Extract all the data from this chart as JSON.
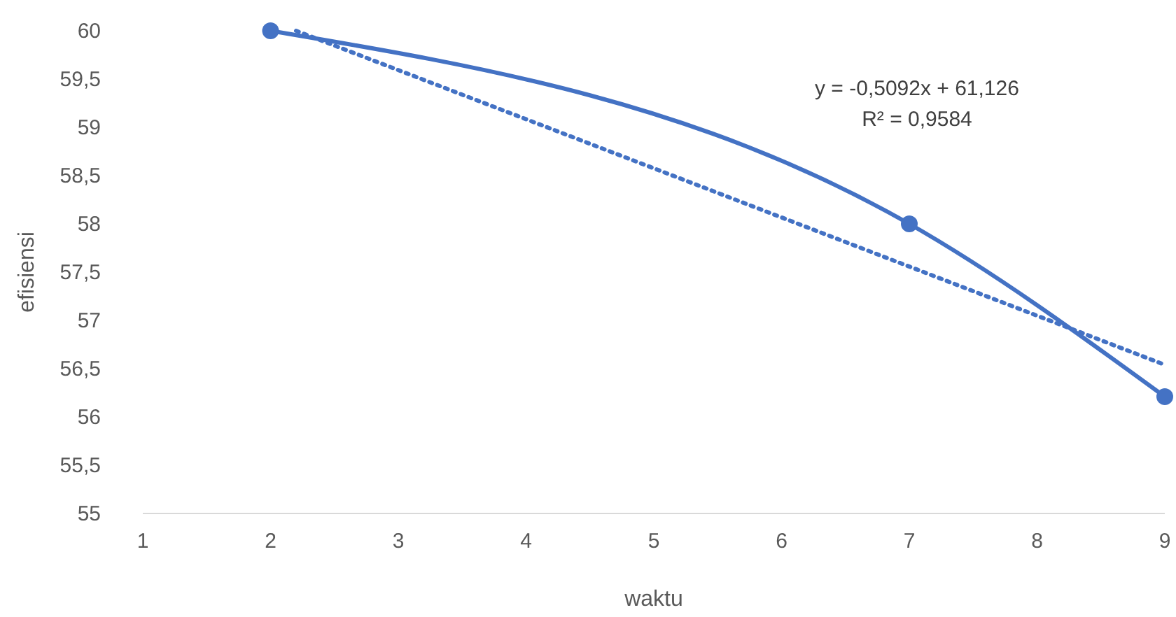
{
  "chart_data": {
    "type": "line",
    "xlabel": "waktu",
    "ylabel": "efisiensi",
    "xlim": [
      1,
      9
    ],
    "xticks": [
      1,
      2,
      3,
      4,
      5,
      6,
      7,
      8,
      9
    ],
    "ylim": [
      55,
      60
    ],
    "yticks": [
      55,
      {
        "value": 55.5,
        "label": "55,5"
      },
      56,
      {
        "value": 56.5,
        "label": "56,5"
      },
      57,
      {
        "value": 57.5,
        "label": "57,5"
      },
      58,
      {
        "value": 58.5,
        "label": "58,5"
      },
      59,
      {
        "value": 59.5,
        "label": "59,5"
      },
      60
    ],
    "grid": false,
    "series": [
      {
        "type": "line",
        "color": "#4472c4",
        "x": [
          2,
          7,
          9
        ],
        "values": [
          60,
          58,
          56.21
        ],
        "marker": "circle",
        "line_style": "solid"
      },
      {
        "type": "line",
        "color": "#4472c4",
        "x": [
          2.2,
          9
        ],
        "values": [
          60.0,
          56.54
        ],
        "marker": "none",
        "line_style": "dotted"
      }
    ],
    "annotations": [
      "y = -0,5092x + 61,126",
      "R² = 0,9584"
    ]
  }
}
